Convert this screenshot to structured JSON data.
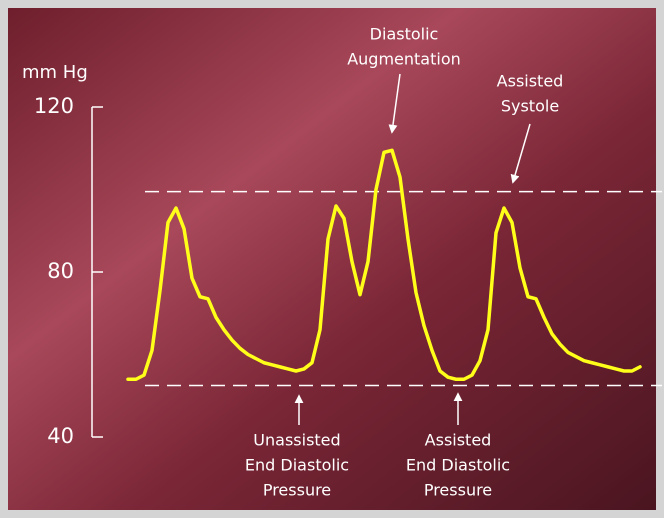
{
  "chart_data": {
    "type": "line",
    "y_label": "mm Hg",
    "ylim": [
      40,
      120
    ],
    "yticks": [
      40,
      80,
      120
    ],
    "reference_lines": [
      99.5,
      52.5
    ],
    "categories": [
      null,
      null,
      null,
      null,
      null,
      null,
      null,
      null,
      null,
      null,
      null,
      null,
      null,
      null,
      null,
      null,
      null,
      null,
      null,
      null,
      null,
      null,
      null,
      null,
      null,
      null,
      null,
      null,
      null,
      null,
      null,
      null,
      null,
      null,
      null,
      null,
      null,
      null,
      null,
      null,
      null,
      null,
      null,
      null,
      null,
      null,
      null,
      null,
      null,
      null,
      null,
      null,
      null,
      null,
      null,
      null,
      null,
      null,
      null,
      null,
      null,
      null,
      null,
      null,
      null
    ],
    "series": [
      {
        "color": "#ffff1a",
        "values": [
          54,
          54,
          55,
          61,
          75.5,
          92,
          95.5,
          90.5,
          78.5,
          74,
          73.5,
          69,
          66,
          63.5,
          61.5,
          60,
          59,
          58,
          57.5,
          57,
          56.5,
          56,
          56.5,
          58,
          66,
          88,
          96,
          93,
          82.5,
          74.5,
          82.5,
          100,
          109,
          109.5,
          103,
          88,
          75,
          67,
          61,
          56,
          54.5,
          54,
          54,
          55,
          58.5,
          66,
          89.5,
          95.5,
          92,
          81,
          74,
          73.5,
          69,
          65,
          62.5,
          60.5,
          59.5,
          58.5,
          58,
          57.5,
          57,
          56.5,
          56,
          56,
          57
        ]
      }
    ],
    "annotations": [
      {
        "lines": [
          "Diastolic",
          "Augmentation"
        ]
      },
      {
        "lines": [
          "Assisted",
          "Systole"
        ]
      },
      {
        "lines": [
          "Unassisted",
          "End Diastolic",
          "Pressure"
        ]
      },
      {
        "lines": [
          "Assisted",
          "End Diastolic",
          "Pressure"
        ]
      }
    ]
  }
}
